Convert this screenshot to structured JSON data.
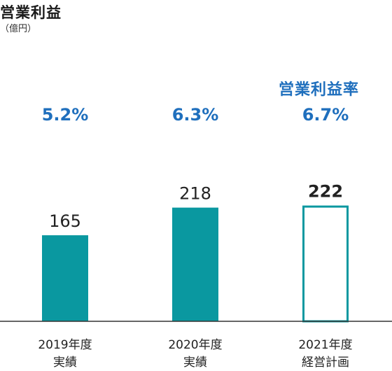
{
  "chart_data": {
    "type": "bar",
    "title": "営業利益",
    "unit": "（億円）",
    "categories": [
      [
        "2019年度",
        "実績"
      ],
      [
        "2020年度",
        "実績"
      ],
      [
        "2021年度",
        "経営計画"
      ]
    ],
    "values": [
      165,
      218,
      222
    ],
    "bar_styles": [
      "filled",
      "filled",
      "outline"
    ],
    "value_label_weights": [
      "normal",
      "normal",
      "bold"
    ],
    "secondary_series": {
      "name": "営業利益率",
      "values": [
        "5.2%",
        "6.3%",
        "6.7%"
      ]
    },
    "colors": {
      "bar": "#0a98a0",
      "margin_text": "#1f6fbd",
      "baseline": "#333333",
      "text": "#222222"
    },
    "grid": false
  }
}
